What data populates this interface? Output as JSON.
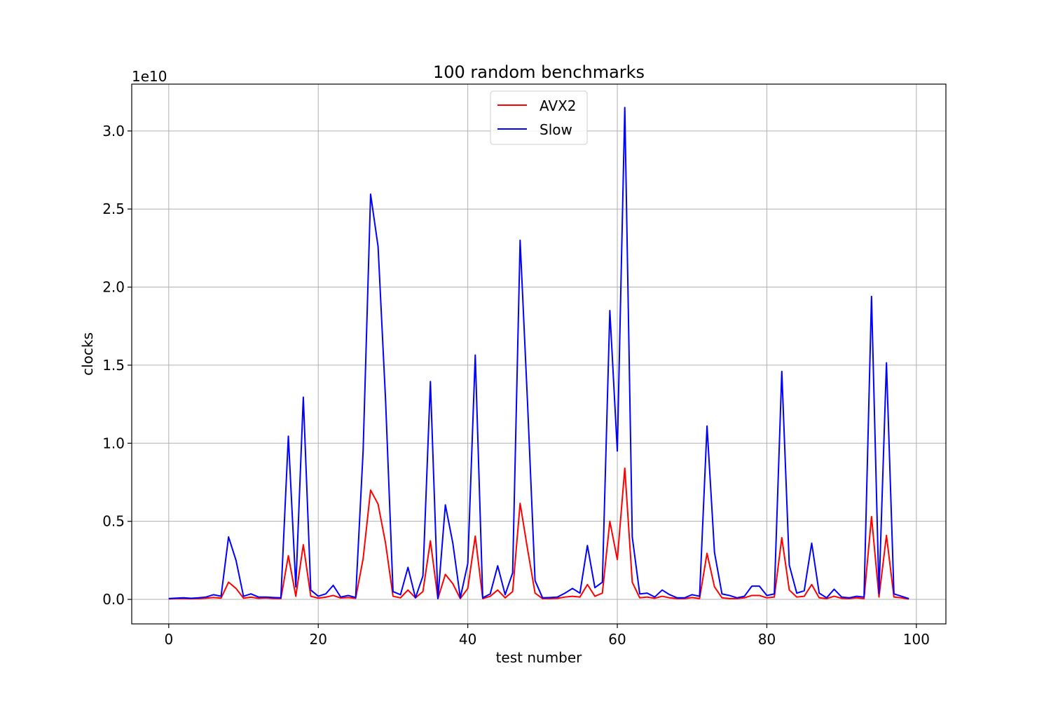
{
  "chart_data": {
    "type": "line",
    "title": "100 random benchmarks",
    "xlabel": "test number",
    "ylabel": "clocks",
    "y_offset_label": "1e10",
    "xlim": [
      -4.95,
      103.95
    ],
    "ylim": [
      -0.157,
      3.3
    ],
    "xticks": [
      0,
      20,
      40,
      60,
      80,
      100
    ],
    "xtick_labels": [
      "0",
      "20",
      "40",
      "60",
      "80",
      "100"
    ],
    "yticks": [
      0.0,
      0.5,
      1.0,
      1.5,
      2.0,
      2.5,
      3.0
    ],
    "ytick_labels": [
      "0.0",
      "0.5",
      "1.0",
      "1.5",
      "2.0",
      "2.5",
      "3.0"
    ],
    "grid": true,
    "legend_position": "upper-center",
    "x": [
      0,
      1,
      2,
      3,
      4,
      5,
      6,
      7,
      8,
      9,
      10,
      11,
      12,
      13,
      14,
      15,
      16,
      17,
      18,
      19,
      20,
      21,
      22,
      23,
      24,
      25,
      26,
      27,
      28,
      29,
      30,
      31,
      32,
      33,
      34,
      35,
      36,
      37,
      38,
      39,
      40,
      41,
      42,
      43,
      44,
      45,
      46,
      47,
      48,
      49,
      50,
      51,
      52,
      53,
      54,
      55,
      56,
      57,
      58,
      59,
      60,
      61,
      62,
      63,
      64,
      65,
      66,
      67,
      68,
      69,
      70,
      71,
      72,
      73,
      74,
      75,
      76,
      77,
      78,
      79,
      80,
      81,
      82,
      83,
      84,
      85,
      86,
      87,
      88,
      89,
      90,
      91,
      92,
      93,
      94,
      95,
      96,
      97,
      98,
      99
    ],
    "series": [
      {
        "name": "AVX2",
        "color": "#ff0000",
        "values": [
          0.003,
          0.005,
          0.005,
          0.004,
          0.005,
          0.008,
          0.012,
          0.008,
          0.11,
          0.07,
          0.008,
          0.014,
          0.007,
          0.009,
          0.006,
          0.005,
          0.28,
          0.02,
          0.35,
          0.02,
          0.008,
          0.014,
          0.025,
          0.009,
          0.012,
          0.007,
          0.26,
          0.7,
          0.61,
          0.36,
          0.02,
          0.01,
          0.06,
          0.01,
          0.05,
          0.375,
          0.005,
          0.16,
          0.1,
          0.005,
          0.07,
          0.405,
          0.005,
          0.02,
          0.06,
          0.01,
          0.05,
          0.615,
          0.32,
          0.04,
          0.005,
          0.005,
          0.007,
          0.015,
          0.02,
          0.015,
          0.095,
          0.02,
          0.04,
          0.5,
          0.255,
          0.84,
          0.11,
          0.01,
          0.015,
          0.007,
          0.02,
          0.01,
          0.005,
          0.005,
          0.012,
          0.005,
          0.295,
          0.08,
          0.01,
          0.005,
          0.005,
          0.01,
          0.025,
          0.025,
          0.01,
          0.015,
          0.395,
          0.06,
          0.015,
          0.02,
          0.095,
          0.01,
          0.005,
          0.02,
          0.007,
          0.005,
          0.01,
          0.005,
          0.53,
          0.015,
          0.41,
          0.015,
          0.01,
          0.002
        ]
      },
      {
        "name": "Slow",
        "color": "#0000ff",
        "values": [
          0.005,
          0.008,
          0.01,
          0.007,
          0.01,
          0.015,
          0.03,
          0.02,
          0.4,
          0.25,
          0.02,
          0.035,
          0.015,
          0.015,
          0.012,
          0.01,
          1.045,
          0.08,
          1.295,
          0.06,
          0.02,
          0.035,
          0.09,
          0.015,
          0.025,
          0.012,
          0.95,
          2.595,
          2.26,
          1.28,
          0.05,
          0.03,
          0.205,
          0.01,
          0.15,
          1.395,
          0.005,
          0.605,
          0.36,
          0.01,
          0.23,
          1.565,
          0.01,
          0.035,
          0.215,
          0.03,
          0.17,
          2.3,
          1.25,
          0.12,
          0.01,
          0.012,
          0.015,
          0.04,
          0.07,
          0.04,
          0.345,
          0.075,
          0.11,
          1.85,
          0.95,
          3.15,
          0.4,
          0.035,
          0.04,
          0.015,
          0.06,
          0.03,
          0.01,
          0.01,
          0.03,
          0.02,
          1.11,
          0.3,
          0.035,
          0.025,
          0.01,
          0.02,
          0.085,
          0.085,
          0.025,
          0.035,
          1.46,
          0.22,
          0.04,
          0.055,
          0.36,
          0.04,
          0.01,
          0.065,
          0.015,
          0.01,
          0.02,
          0.015,
          1.94,
          0.04,
          1.515,
          0.035,
          0.02,
          0.005
        ]
      }
    ]
  }
}
